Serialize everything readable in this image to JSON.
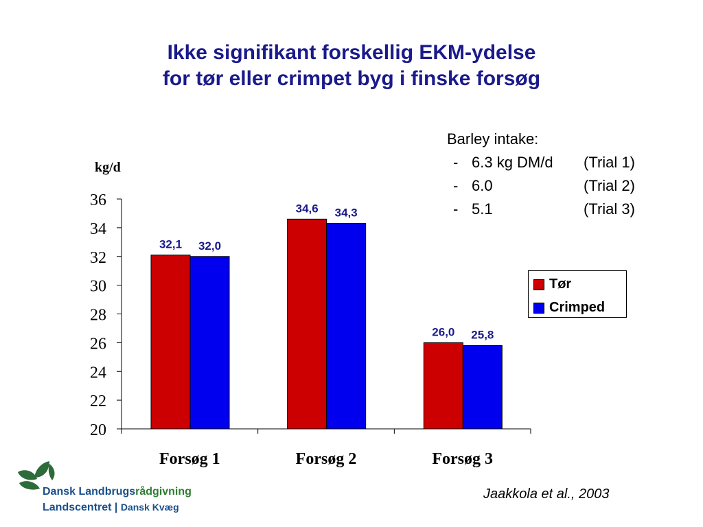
{
  "slide": {
    "title_line1": "Ikke signifikant forskellig EKM-ydelse",
    "title_line2": "for tør eller crimpet byg i finske forsøg"
  },
  "note": {
    "heading": "Barley intake:",
    "rows": [
      {
        "dash": "-",
        "amount": "6.3 kg DM/d",
        "trial": "(Trial 1)"
      },
      {
        "dash": "-",
        "amount": "6.0",
        "trial": "(Trial 2)"
      },
      {
        "dash": "-",
        "amount": "5.1",
        "trial": "(Trial 3)"
      }
    ]
  },
  "legend": {
    "items": [
      {
        "label": "Tør",
        "color": "#cc0000"
      },
      {
        "label": "Crimped",
        "color": "#0000ee"
      }
    ]
  },
  "chart_data": {
    "type": "bar",
    "title": "",
    "xlabel": "",
    "ylabel": "kg/d",
    "ylim": [
      20,
      36
    ],
    "yticks": [
      20,
      22,
      24,
      26,
      28,
      30,
      32,
      34,
      36
    ],
    "categories": [
      "Forsøg 1",
      "Forsøg 2",
      "Forsøg 3"
    ],
    "series": [
      {
        "name": "Tør",
        "color": "#cc0000",
        "values": [
          32.1,
          34.6,
          26.0
        ],
        "labels": [
          "32,1",
          "34,6",
          "26,0"
        ]
      },
      {
        "name": "Crimped",
        "color": "#0000ee",
        "values": [
          32.0,
          34.3,
          25.8
        ],
        "labels": [
          "32,0",
          "34,3",
          "25,8"
        ]
      }
    ],
    "grid": false,
    "legend_position": "right"
  },
  "logo": {
    "line1_part1": "Dansk Landbrugs",
    "line1_part2": "rådgivning",
    "line2_part1": "Landscentret",
    "line2_sep": "|",
    "line2_part2": "Dansk Kvæg"
  },
  "citation": "Jaakkola et al., 2003"
}
